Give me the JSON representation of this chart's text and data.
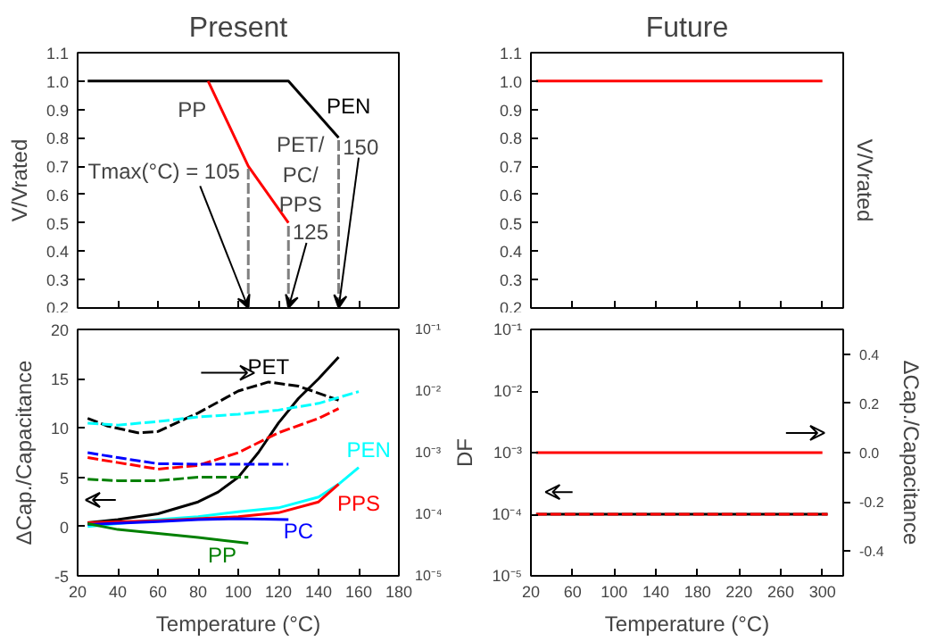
{
  "chart_data": [
    {
      "type": "line",
      "title": "Present",
      "ylabel": "V/Vrated",
      "xlim": [
        20,
        180
      ],
      "ylim": [
        0.2,
        1.1
      ],
      "xticks": [
        20,
        40,
        60,
        80,
        100,
        120,
        140,
        160,
        180
      ],
      "yticks": [
        0.2,
        0.3,
        0.4,
        0.5,
        0.6,
        0.7,
        0.8,
        0.9,
        {
          "value": 1,
          "label": "1.0"
        },
        1.1
      ],
      "tick_labels": "y",
      "line_style": "solid",
      "series": [
        {
          "name": "PEN",
          "color": "#000000",
          "x": [
            25,
            125,
            150
          ],
          "values": [
            1.0,
            1.0,
            0.8
          ]
        },
        {
          "color": "#ff0000",
          "x": [
            85,
            105,
            125
          ],
          "values": [
            1.0,
            0.7,
            0.5
          ]
        },
        {
          "color": "#808080",
          "line_style": "dashed",
          "x": [
            105,
            105
          ],
          "values": [
            0.2,
            0.7
          ]
        },
        {
          "color": "#808080",
          "line_style": "dashed",
          "x": [
            125,
            125
          ],
          "values": [
            0.2,
            0.5
          ]
        },
        {
          "color": "#808080",
          "line_style": "dashed",
          "x": [
            150,
            150
          ],
          "values": [
            0.2,
            0.8
          ]
        }
      ],
      "annotations": [
        {
          "text": "PP",
          "x": 85,
          "y": 1.0
        },
        {
          "text": "PET/PC/PPS",
          "x": 125,
          "y": 0.5
        },
        {
          "text": "Tmax(°C) = 105",
          "x": 105,
          "y": 0.2
        },
        {
          "text": "125",
          "x": 125,
          "y": 0.2
        },
        {
          "text": "150",
          "x": 150,
          "y": 0.2
        }
      ]
    },
    {
      "type": "line",
      "title": "Future",
      "ylabel": "V/Vrated",
      "xlim": [
        20,
        320
      ],
      "ylim": [
        0.2,
        1.1
      ],
      "xticks": [
        20,
        60,
        100,
        140,
        180,
        220,
        260,
        300
      ],
      "yticks": [
        0.2,
        0.3,
        0.4,
        0.5,
        0.6,
        0.7,
        0.8,
        0.9,
        {
          "value": 1,
          "label": "1.0"
        },
        1.1
      ],
      "tick_labels": "y",
      "line_style": "solid",
      "series": [
        {
          "color": "#ff0000",
          "x": [
            25,
            300
          ],
          "values": [
            1.0,
            1.0
          ]
        }
      ]
    },
    {
      "type": "line",
      "xlabel": "Temperature (°C)",
      "ylabel": "ΔCap./Capacitance",
      "xlim": [
        20,
        180
      ],
      "ylim": [
        -5,
        20
      ],
      "xticks": [
        20,
        40,
        60,
        80,
        100,
        120,
        140,
        160,
        180
      ],
      "yticks": [
        -5,
        0,
        5,
        10,
        15,
        20
      ],
      "log": "y2",
      "y2lim": [
        1e-05,
        0.1
      ],
      "y2ticks": [
        {
          "value": 1e-05,
          "label": "10⁻⁵"
        },
        {
          "value": 0.0001,
          "label": "10⁻⁴"
        },
        {
          "value": 0.001,
          "label": "10⁻³"
        },
        {
          "value": 0.01,
          "label": "10⁻²"
        },
        {
          "value": 0.1,
          "label": "10⁻¹"
        }
      ],
      "line_style": "solid",
      "series": [
        {
          "name": "PET",
          "color": "#000000",
          "x": [
            25,
            40,
            60,
            80,
            90,
            100,
            110,
            120,
            130,
            140,
            150
          ],
          "values": [
            0.4,
            0.7,
            1.3,
            2.5,
            3.5,
            5.0,
            7.5,
            10.5,
            13.0,
            15.0,
            17.2
          ]
        },
        {
          "name": "PEN",
          "color": "#00ffff",
          "x": [
            25,
            40,
            60,
            80,
            100,
            120,
            140,
            150,
            160
          ],
          "values": [
            0,
            0.3,
            0.7,
            1.0,
            1.5,
            1.9,
            3.0,
            4.3,
            6.0
          ]
        },
        {
          "name": "PPS",
          "color": "#ff0000",
          "x": [
            25,
            60,
            80,
            100,
            120,
            140,
            150
          ],
          "values": [
            0.4,
            0.6,
            0.8,
            1.0,
            1.4,
            2.5,
            4.3
          ]
        },
        {
          "name": "PC",
          "color": "#0000ff",
          "x": [
            25,
            60,
            80,
            100,
            125
          ],
          "values": [
            0.2,
            0.5,
            0.7,
            0.8,
            0.7
          ]
        },
        {
          "name": "PP",
          "color": "#008000",
          "x": [
            25,
            40,
            60,
            80,
            105
          ],
          "values": [
            0.3,
            -0.3,
            -0.7,
            -1.1,
            -1.7
          ]
        },
        {
          "color": "#000000",
          "axis": "y2",
          "line_style": "dashed",
          "x": [
            25,
            35,
            50,
            60,
            80,
            100,
            115,
            130,
            150
          ],
          "values": [
            0.0036,
            0.0027,
            0.0021,
            0.0022,
            0.0044,
            0.01,
            0.014,
            0.012,
            0.0071
          ]
        },
        {
          "color": "#00ffff",
          "axis": "y2",
          "line_style": "dashed",
          "x": [
            25,
            40,
            60,
            80,
            100,
            120,
            140,
            160
          ],
          "values": [
            0.003,
            0.0028,
            0.0032,
            0.0038,
            0.0042,
            0.0049,
            0.0063,
            0.0098
          ]
        },
        {
          "color": "#ff0000",
          "axis": "y2",
          "line_style": "dashed",
          "x": [
            25,
            40,
            60,
            80,
            100,
            120,
            140,
            150
          ],
          "values": [
            0.00083,
            0.00069,
            0.00054,
            0.00062,
            0.001,
            0.0021,
            0.0036,
            0.0052
          ]
        },
        {
          "color": "#0000ff",
          "axis": "y2",
          "line_style": "dashed",
          "x": [
            25,
            40,
            60,
            80,
            100,
            125
          ],
          "values": [
            0.001,
            0.00083,
            0.00066,
            0.00065,
            0.00065,
            0.00065
          ]
        },
        {
          "color": "#008000",
          "axis": "y2",
          "line_style": "dashed",
          "x": [
            25,
            40,
            60,
            80,
            105
          ],
          "values": [
            0.00037,
            0.00035,
            0.00035,
            0.0004,
            0.0004
          ]
        }
      ]
    },
    {
      "type": "line",
      "xlabel": "Temperature (°C)",
      "ylabel": "DF",
      "y2label": "ΔCap./Capacitance",
      "xlim": [
        20,
        320
      ],
      "ylim": [
        1e-05,
        0.1
      ],
      "xticks": [
        20,
        60,
        100,
        140,
        180,
        220,
        260,
        300
      ],
      "log": "y",
      "yticks": [
        {
          "value": 1e-05,
          "label": "10⁻⁵"
        },
        {
          "value": 0.0001,
          "label": "10⁻⁴"
        },
        {
          "value": 0.001,
          "label": "10⁻³"
        },
        {
          "value": 0.01,
          "label": "10⁻²"
        },
        {
          "value": 0.1,
          "label": "10⁻¹"
        }
      ],
      "y2lim": [
        -0.5,
        0.5
      ],
      "y2ticks": [
        -0.4,
        -0.2,
        {
          "value": 0,
          "label": "0.0"
        },
        0.2,
        0.4
      ],
      "line_style": "solid",
      "series": [
        {
          "color": "#ff0000",
          "axis": "y2",
          "x": [
            25,
            300
          ],
          "values": [
            0.0,
            0.0
          ]
        },
        {
          "color": "#000000",
          "x": [
            25,
            305
          ],
          "values": [
            0.0001,
            0.0001
          ]
        },
        {
          "color": "#ff0000",
          "line_style": "dashed",
          "x": [
            25,
            305
          ],
          "values": [
            0.0001,
            0.0001
          ]
        }
      ]
    }
  ]
}
